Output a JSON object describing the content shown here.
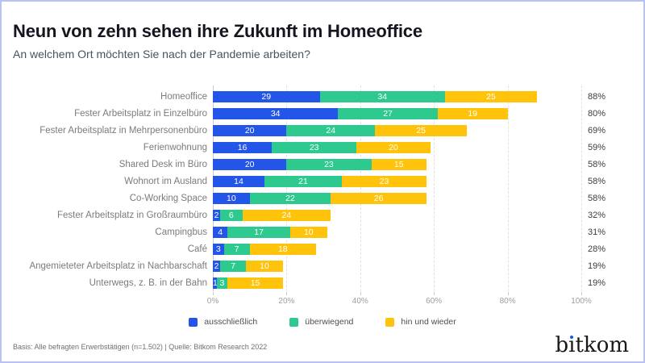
{
  "frame": {
    "border_color": "#B9C2F2",
    "background": "#FFFFFF"
  },
  "header": {
    "title": "Neun von zehn sehen ihre Zukunft im Homeoffice",
    "subtitle": "An welchem Ort möchten Sie nach der Pandemie arbeiten?"
  },
  "chart_data": {
    "type": "bar",
    "orientation": "horizontal",
    "stacked": true,
    "unit": "percent",
    "categories": [
      "Homeoffice",
      "Fester Arbeitsplatz in Einzelbüro",
      "Fester Arbeitsplatz in Mehrpersonenbüro",
      "Ferienwohnung",
      "Shared Desk im Büro",
      "Wohnort im Ausland",
      "Co-Working Space",
      "Fester Arbeitsplatz in Großraumbüro",
      "Campingbus",
      "Café",
      "Angemieteter Arbeitsplatz in Nachbarschaft",
      "Unterwegs, z. B. in der Bahn"
    ],
    "series": [
      {
        "name": "ausschließlich",
        "color": "#2356E8",
        "values": [
          29,
          34,
          20,
          16,
          20,
          14,
          10,
          2,
          4,
          3,
          2,
          1
        ]
      },
      {
        "name": "überwiegend",
        "color": "#2EC98F",
        "values": [
          34,
          27,
          24,
          23,
          23,
          21,
          22,
          6,
          17,
          7,
          7,
          3
        ]
      },
      {
        "name": "hin und wieder",
        "color": "#FFC30B",
        "values": [
          25,
          19,
          25,
          20,
          15,
          23,
          26,
          24,
          10,
          18,
          10,
          15
        ]
      }
    ],
    "totals": [
      "88%",
      "80%",
      "69%",
      "59%",
      "58%",
      "58%",
      "58%",
      "32%",
      "31%",
      "28%",
      "19%",
      "19%"
    ],
    "x_ticks": [
      "0%",
      "20%",
      "40%",
      "60%",
      "80%",
      "100%"
    ],
    "xlim": [
      0,
      100
    ],
    "grid": "vertical-dashed",
    "legend_position": "bottom"
  },
  "footer": {
    "source": "Basis: Alle befragten Erwerbstätigen (n=1.502) | Quelle: Bitkom Research 2022",
    "logo_text": "bitkom",
    "logo_dot_color": "#2356E8"
  }
}
